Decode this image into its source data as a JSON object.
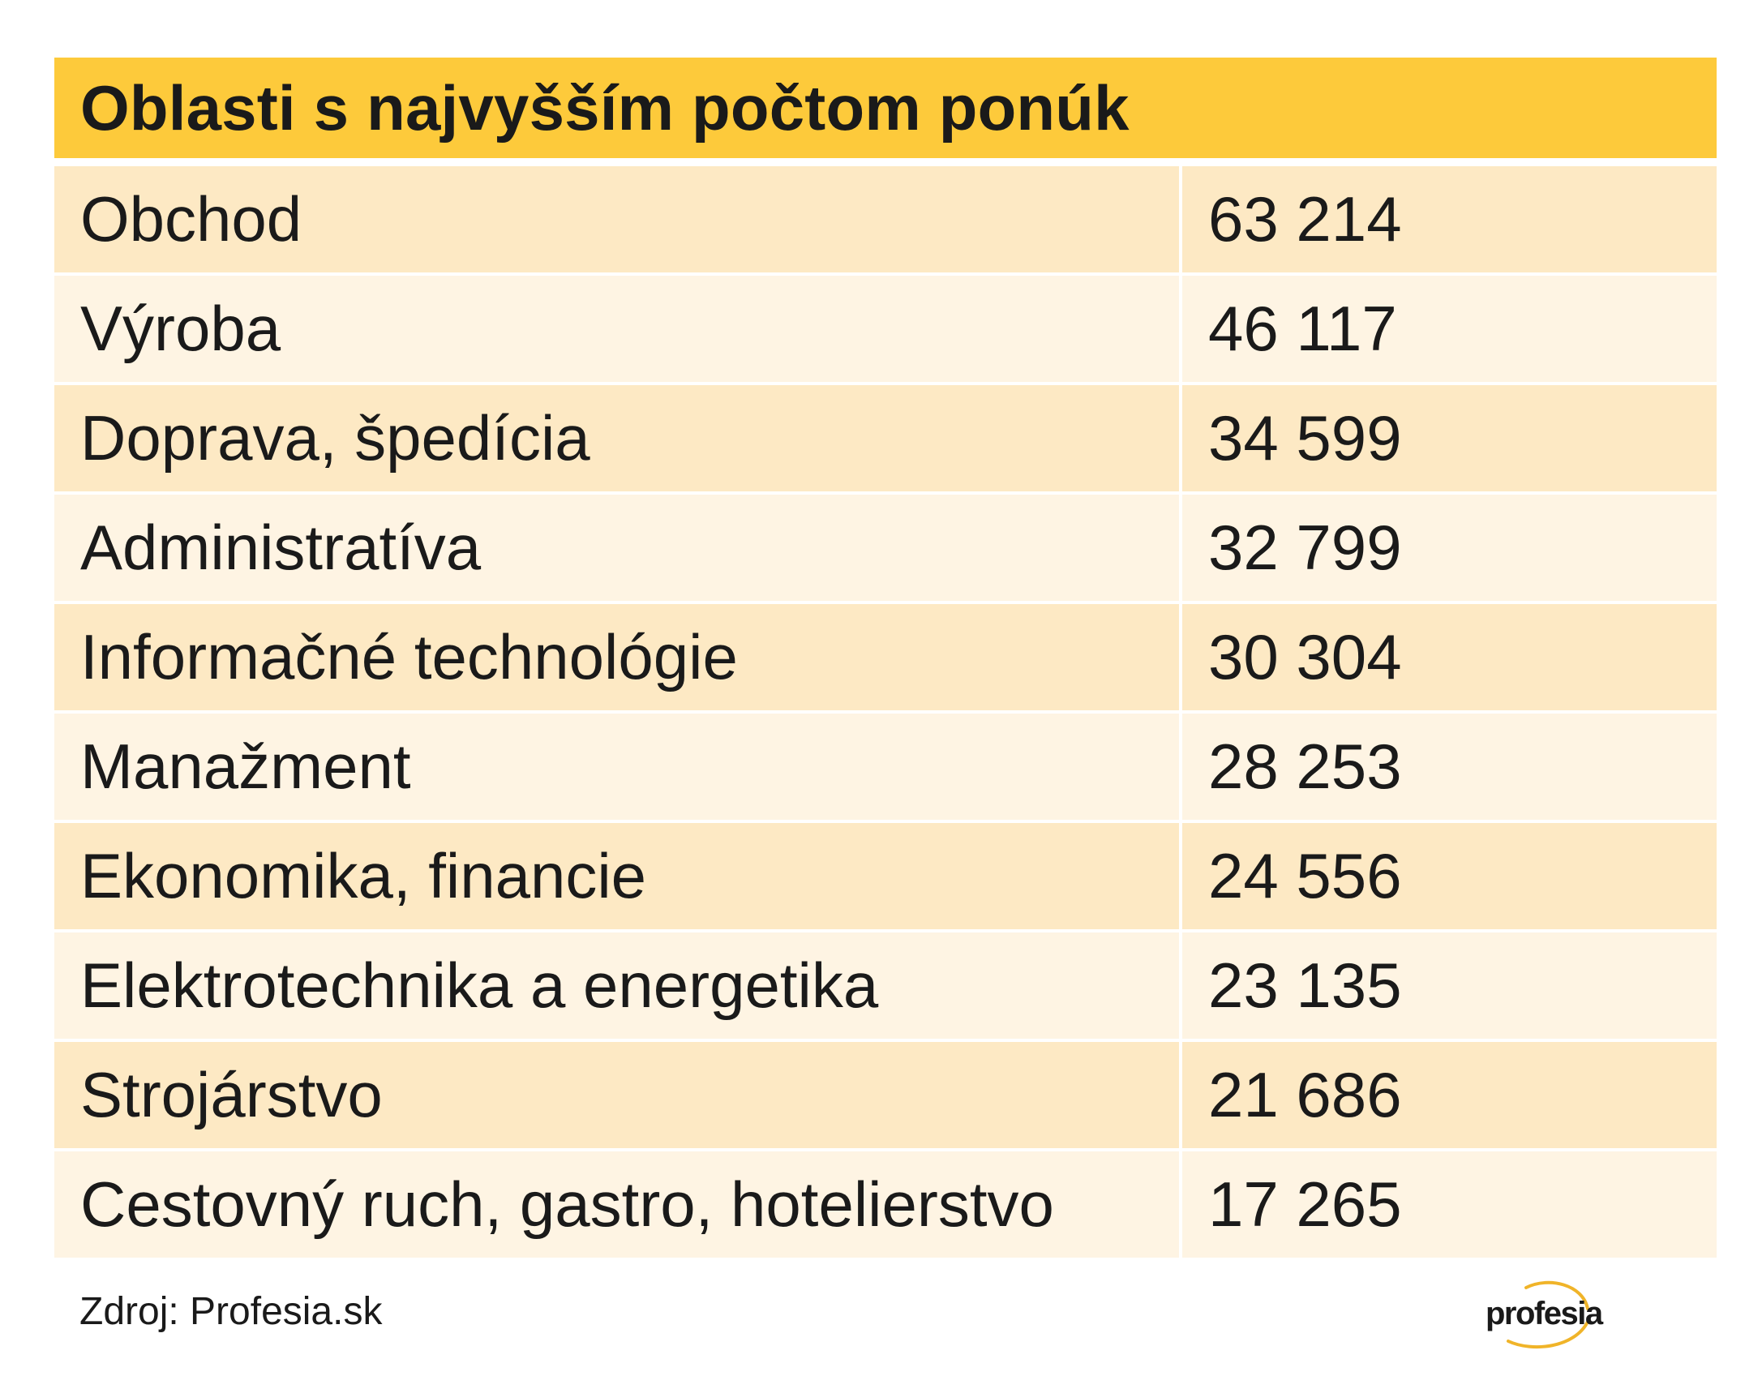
{
  "chart_data": {
    "type": "table",
    "title": "Oblasti s najvyšším počtom ponúk",
    "rows": [
      {
        "label": "Obchod",
        "value": 63214,
        "value_text": "63 214"
      },
      {
        "label": "Výroba",
        "value": 46117,
        "value_text": "46 117"
      },
      {
        "label": "Doprava, špedícia",
        "value": 34599,
        "value_text": "34 599"
      },
      {
        "label": "Administratíva",
        "value": 32799,
        "value_text": "32 799"
      },
      {
        "label": "Informačné technológie",
        "value": 30304,
        "value_text": "30 304"
      },
      {
        "label": "Manažment",
        "value": 28253,
        "value_text": "28 253"
      },
      {
        "label": "Ekonomika, financie",
        "value": 24556,
        "value_text": "24 556"
      },
      {
        "label": "Elektrotechnika a energetika",
        "value": 23135,
        "value_text": "23 135"
      },
      {
        "label": "Strojárstvo",
        "value": 21686,
        "value_text": "21 686"
      },
      {
        "label": "Cestovný ruch, gastro, hotelierstvo",
        "value": 17265,
        "value_text": "17 265"
      }
    ],
    "source": "Zdroj: Profesia.sk",
    "colors": {
      "header": "#fdca3b",
      "row_odd": "#fde9c4",
      "row_even": "#fef4e3",
      "logo_accent": "#f0b429"
    }
  },
  "logo": {
    "text": "profesia",
    "icon": "profesia-swoosh-icon"
  }
}
